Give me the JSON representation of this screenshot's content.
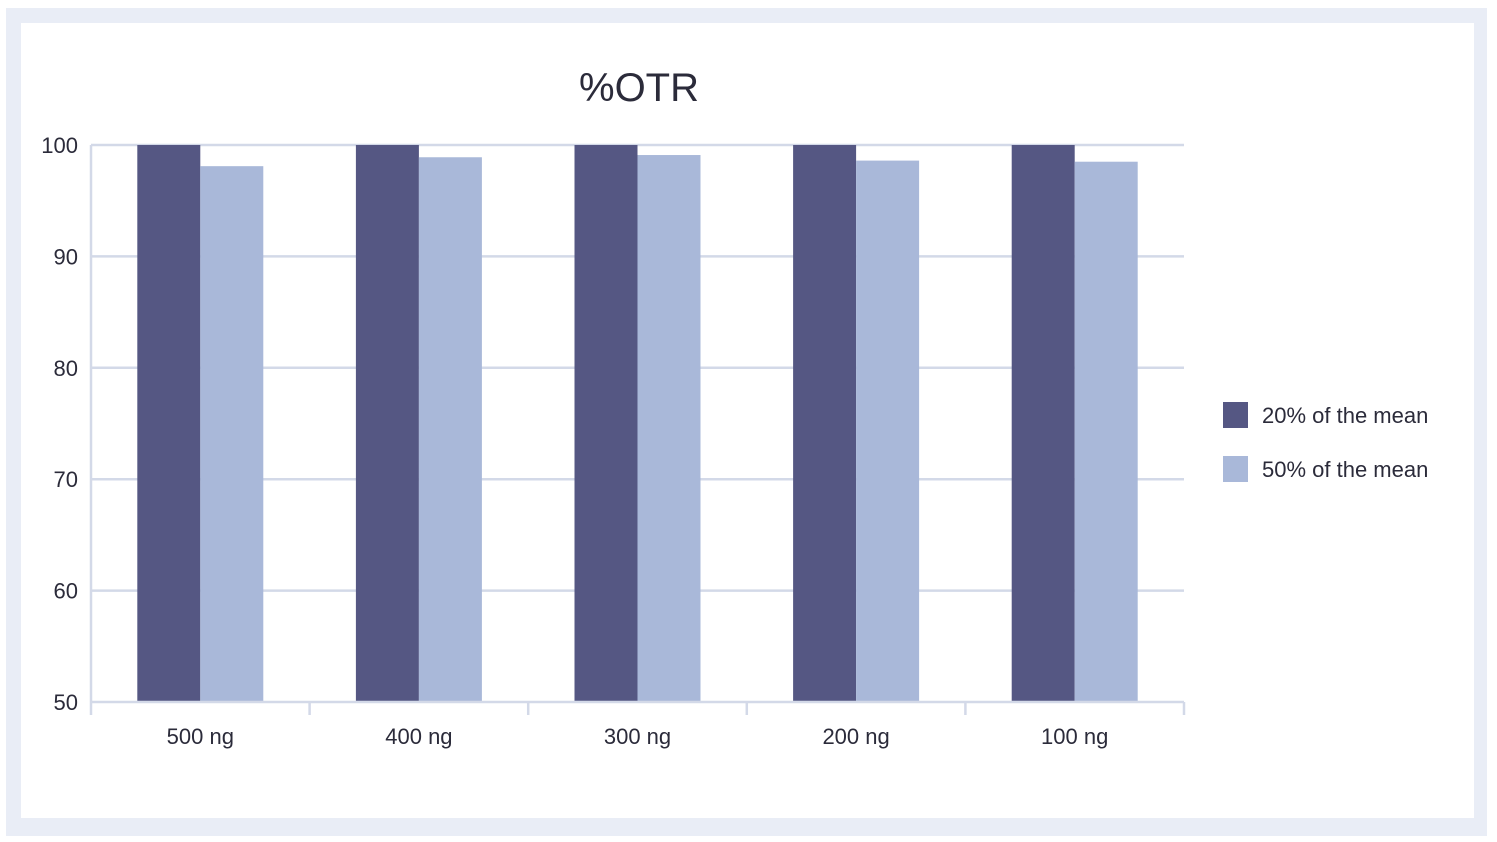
{
  "chart_data": {
    "type": "bar",
    "title": "%OTR",
    "xlabel": "",
    "ylabel": "",
    "categories": [
      "500 ng",
      "400 ng",
      "300 ng",
      "200 ng",
      "100 ng"
    ],
    "ylim": [
      50,
      100
    ],
    "yticks": [
      "50",
      "60",
      "70",
      "80",
      "90",
      "100"
    ],
    "grid": true,
    "legend_position": "right",
    "series": [
      {
        "name": "20% of the mean",
        "color": "#555783",
        "values": [
          100,
          100,
          100,
          100,
          100
        ]
      },
      {
        "name": "50% of the mean",
        "color": "#a9b8d9",
        "values": [
          98.1,
          98.9,
          99.1,
          98.6,
          98.5
        ]
      }
    ]
  }
}
